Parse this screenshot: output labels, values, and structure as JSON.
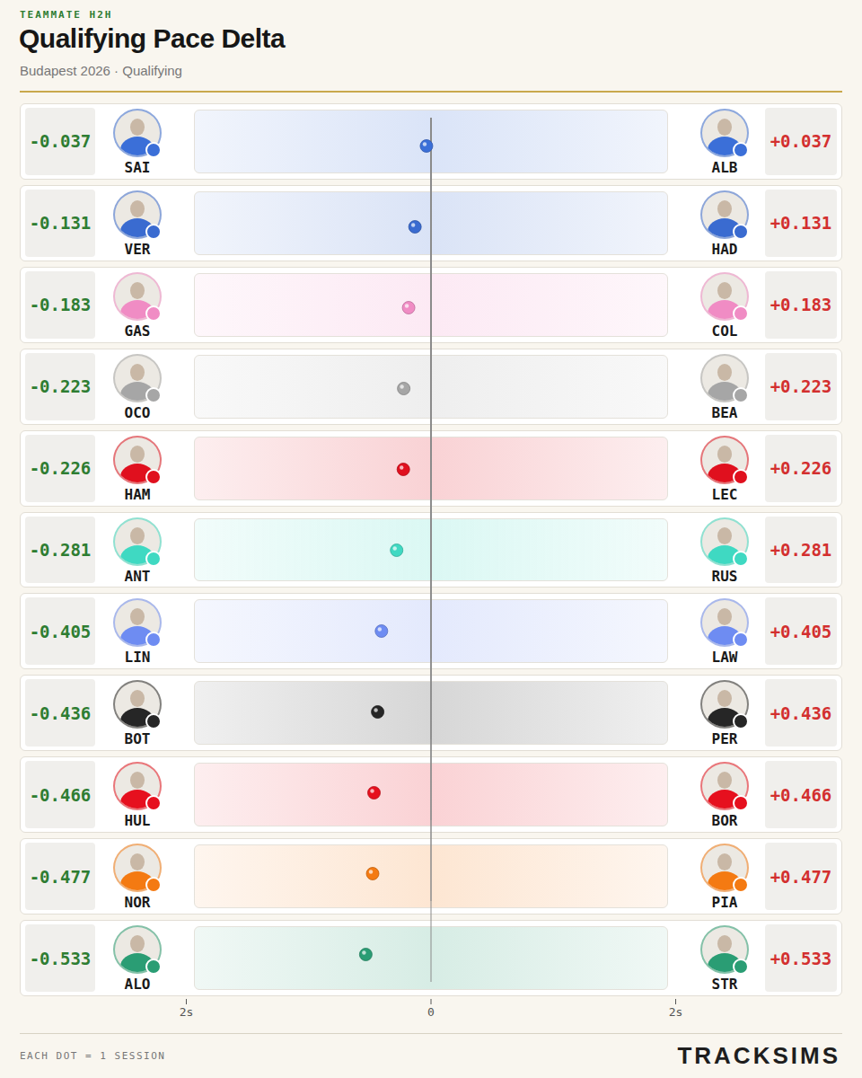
{
  "chart_data": {
    "type": "dot",
    "kicker": "TEAMMATE H2H",
    "title": "Qualifying Pace Delta",
    "subtitle": "Budapest 2026 · Qualifying",
    "rows": [
      {
        "left": "SAI",
        "right": "ALB",
        "values": [
          -0.037,
          0.037
        ],
        "value_labels": [
          "-0.037",
          "+0.037"
        ],
        "color": "#3b6fd8"
      },
      {
        "left": "VER",
        "right": "HAD",
        "values": [
          -0.131,
          0.131
        ],
        "value_labels": [
          "-0.131",
          "+0.131"
        ],
        "color": "#3a6bd0"
      },
      {
        "left": "GAS",
        "right": "COL",
        "values": [
          -0.183,
          0.183
        ],
        "value_labels": [
          "-0.183",
          "+0.183"
        ],
        "color": "#f08cc4"
      },
      {
        "left": "OCO",
        "right": "BEA",
        "values": [
          -0.223,
          0.223
        ],
        "value_labels": [
          "-0.223",
          "+0.223"
        ],
        "color": "#a6a6a6"
      },
      {
        "left": "HAM",
        "right": "LEC",
        "values": [
          -0.226,
          0.226
        ],
        "value_labels": [
          "-0.226",
          "+0.226"
        ],
        "color": "#e0101e"
      },
      {
        "left": "ANT",
        "right": "RUS",
        "values": [
          -0.281,
          0.281
        ],
        "value_labels": [
          "-0.281",
          "+0.281"
        ],
        "color": "#3fd9c2"
      },
      {
        "left": "LIN",
        "right": "LAW",
        "values": [
          -0.405,
          0.405
        ],
        "value_labels": [
          "-0.405",
          "+0.405"
        ],
        "color": "#6e8cf2"
      },
      {
        "left": "BOT",
        "right": "PER",
        "values": [
          -0.436,
          0.436
        ],
        "value_labels": [
          "-0.436",
          "+0.436"
        ],
        "color": "#262626"
      },
      {
        "left": "HUL",
        "right": "BOR",
        "values": [
          -0.466,
          0.466
        ],
        "value_labels": [
          "-0.466",
          "+0.466"
        ],
        "color": "#e6101e"
      },
      {
        "left": "NOR",
        "right": "PIA",
        "values": [
          -0.477,
          0.477
        ],
        "value_labels": [
          "-0.477",
          "+0.477"
        ],
        "color": "#f47a12"
      },
      {
        "left": "ALO",
        "right": "STR",
        "values": [
          -0.533,
          0.533
        ],
        "value_labels": [
          "-0.533",
          "+0.533"
        ],
        "color": "#2a9d74"
      }
    ],
    "xlim": [
      -2,
      2
    ],
    "xticks": [
      {
        "value": -2,
        "label": "2s"
      },
      0,
      {
        "value": 2,
        "label": "2s"
      }
    ],
    "caption": "EACH DOT = 1 SESSION",
    "brand": "TRACKSIMS"
  }
}
